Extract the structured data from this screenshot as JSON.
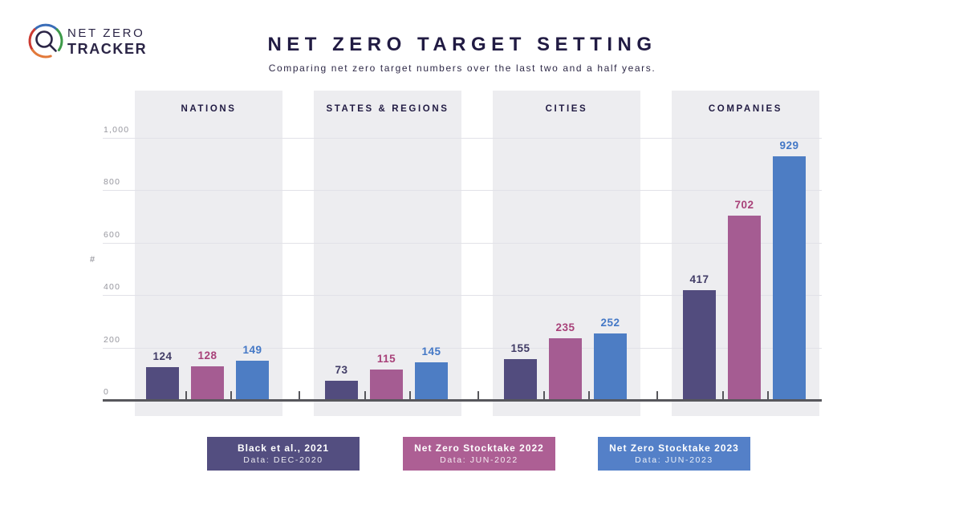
{
  "brand": {
    "line1": "NET ZERO",
    "line2": "TRACKER"
  },
  "header": {
    "title": "NET ZERO TARGET SETTING",
    "subtitle": "Comparing net zero target numbers over the last two and a half years."
  },
  "chart_data": {
    "type": "bar",
    "title": "NET ZERO TARGET SETTING",
    "subtitle": "Comparing net zero target numbers over the last two and a half years.",
    "categories": [
      "NATIONS",
      "STATES & REGIONS",
      "CITIES",
      "COMPANIES"
    ],
    "series": [
      {
        "name": "Black et al., 2021",
        "values": [
          124,
          73,
          155,
          417
        ],
        "color": "#524c7e",
        "label_color": "#413c66"
      },
      {
        "name": "Net Zero Stocktake 2022",
        "values": [
          128,
          115,
          235,
          702
        ],
        "color": "#a55c92",
        "label_color": "#a84179"
      },
      {
        "name": "Net Zero Stocktake 2023",
        "values": [
          149,
          145,
          252,
          929
        ],
        "color": "#4d7dc4",
        "label_color": "#4478c6"
      }
    ],
    "xlabel": "",
    "ylabel": "#",
    "ylim": [
      0,
      1000
    ],
    "yticks": [
      {
        "label": "0",
        "value": 0
      },
      {
        "label": "200",
        "value": 200
      },
      {
        "label": "400",
        "value": 400
      },
      {
        "label": "600",
        "value": 600
      },
      {
        "label": "800",
        "value": 800
      },
      {
        "label": "1,000",
        "value": 1000
      }
    ],
    "grid": true,
    "legend_position": "bottom"
  },
  "legend": {
    "items": [
      {
        "title": "Black et al., 2021",
        "subtitle": "Data: DEC-2020",
        "color": "#534e80"
      },
      {
        "title": "Net Zero Stocktake 2022",
        "subtitle": "Data: JUN-2022",
        "color": "#ad5f94"
      },
      {
        "title": "Net Zero Stocktake 2023",
        "subtitle": "Data: JUN-2023",
        "color": "#5480c8"
      }
    ]
  }
}
